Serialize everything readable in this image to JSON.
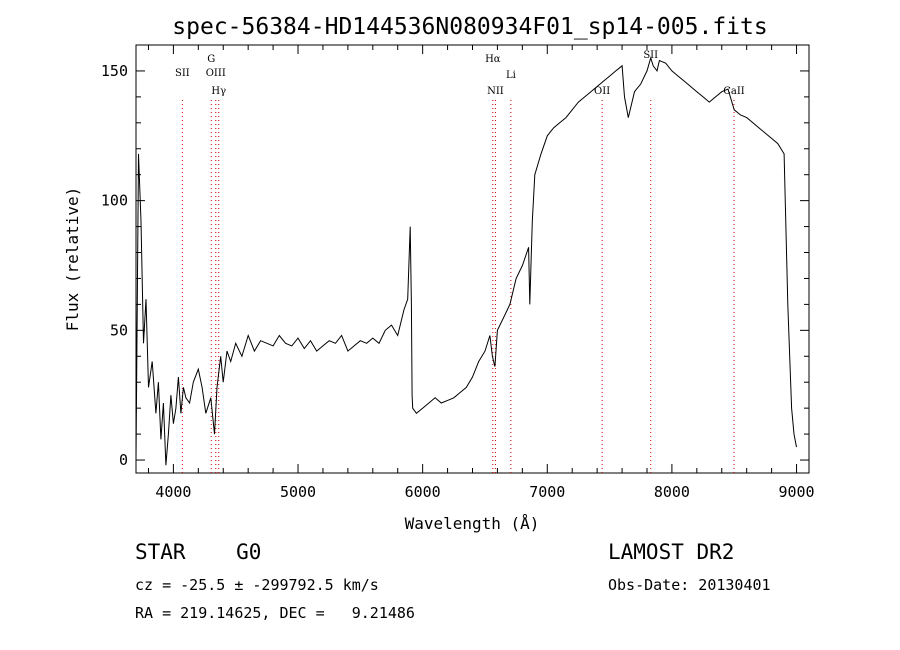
{
  "chart_data": {
    "type": "line",
    "title": "spec-56384-HD144536N080934F01_sp14-005.fits",
    "xlabel": "Wavelength (Å)",
    "ylabel": "Flux (relative)",
    "xlim": [
      3700,
      9100
    ],
    "ylim": [
      -5,
      160
    ],
    "xticks": [
      "4000",
      "5000",
      "6000",
      "7000",
      "8000",
      "9000"
    ],
    "yticks": [
      "0",
      "50",
      "100",
      "150"
    ],
    "grid": false,
    "series": [
      {
        "color": "#000000",
        "x": [
          3700,
          3720,
          3740,
          3760,
          3780,
          3800,
          3830,
          3860,
          3880,
          3900,
          3920,
          3940,
          3960,
          3980,
          4000,
          4020,
          4040,
          4060,
          4080,
          4100,
          4130,
          4160,
          4200,
          4230,
          4260,
          4300,
          4330,
          4350,
          4380,
          4400,
          4430,
          4460,
          4500,
          4550,
          4600,
          4650,
          4700,
          4750,
          4800,
          4850,
          4900,
          4950,
          5000,
          5050,
          5100,
          5150,
          5200,
          5250,
          5300,
          5350,
          5400,
          5450,
          5500,
          5550,
          5600,
          5650,
          5700,
          5750,
          5800,
          5850,
          5880,
          5900,
          5910,
          5915,
          5920,
          5950,
          6000,
          6050,
          6100,
          6150,
          6200,
          6250,
          6300,
          6350,
          6400,
          6450,
          6500,
          6540,
          6560,
          6580,
          6600,
          6650,
          6700,
          6750,
          6800,
          6850,
          6860,
          6880,
          6900,
          6950,
          7000,
          7050,
          7100,
          7150,
          7200,
          7250,
          7300,
          7350,
          7400,
          7450,
          7500,
          7550,
          7600,
          7620,
          7650,
          7700,
          7750,
          7800,
          7830,
          7850,
          7880,
          7900,
          7950,
          8000,
          8050,
          8100,
          8150,
          8200,
          8250,
          8300,
          8350,
          8400,
          8450,
          8500,
          8550,
          8600,
          8650,
          8700,
          8750,
          8800,
          8850,
          8900,
          8930,
          8960,
          8980,
          9000
        ],
        "y": [
          0,
          118,
          92,
          45,
          62,
          28,
          38,
          18,
          30,
          8,
          22,
          -2,
          10,
          25,
          14,
          20,
          32,
          18,
          28,
          24,
          22,
          30,
          35,
          28,
          18,
          24,
          10,
          28,
          40,
          30,
          42,
          38,
          45,
          40,
          48,
          42,
          46,
          45,
          44,
          48,
          45,
          44,
          47,
          43,
          46,
          42,
          44,
          46,
          45,
          48,
          42,
          44,
          46,
          45,
          47,
          45,
          50,
          52,
          48,
          58,
          62,
          90,
          60,
          25,
          20,
          18,
          20,
          22,
          24,
          22,
          23,
          24,
          26,
          28,
          32,
          38,
          42,
          48,
          40,
          36,
          50,
          55,
          60,
          70,
          75,
          82,
          60,
          92,
          110,
          118,
          125,
          128,
          130,
          132,
          135,
          138,
          140,
          142,
          144,
          146,
          148,
          150,
          152,
          140,
          132,
          142,
          145,
          150,
          155,
          152,
          150,
          154,
          153,
          150,
          148,
          146,
          144,
          142,
          140,
          138,
          140,
          142,
          143,
          135,
          133,
          132,
          130,
          128,
          126,
          124,
          122,
          118,
          60,
          20,
          10,
          5
        ]
      }
    ],
    "lines": [
      {
        "label": "SII",
        "x": 4072
      },
      {
        "label": "G",
        "x": 4304
      },
      {
        "label": "OIII",
        "x": 4340
      },
      {
        "label": "Hγ",
        "x": 4364
      },
      {
        "label": "Hα",
        "x": 6563
      },
      {
        "label": "NII",
        "x": 6584
      },
      {
        "label": "Li",
        "x": 6708
      },
      {
        "label": "OII",
        "x": 7440
      },
      {
        "label": "SII",
        "x": 7830
      },
      {
        "label": "CaII",
        "x": 8498
      }
    ]
  },
  "info": {
    "class": "STAR    G0",
    "survey": "LAMOST DR2",
    "cz": "cz = -25.5 ± -299792.5 km/s",
    "obs_date": "Obs-Date: 20130401",
    "radec": "RA = 219.14625, DEC =   9.21486"
  }
}
